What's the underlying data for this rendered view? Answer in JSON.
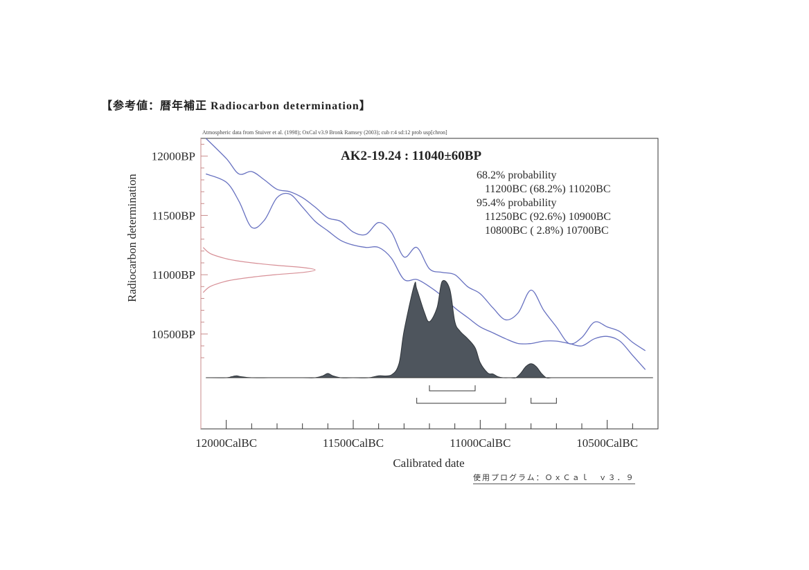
{
  "page": {
    "heading": "【参考値：暦年補正 Radiocarbon determination】",
    "program_label": "使用プログラム：ＯｘＣａｌ　ｖ３．９"
  },
  "chart_data": {
    "type": "line",
    "note": "Atmospheric data from Stuiver et al. (1998); OxCal v3.9 Bronk Ramsey (2003); cub r:4 sd:12 prob usp[chron]",
    "title": "AK2-19.24 : 11040±60BP",
    "xlabel": "Calibrated date",
    "ylabel": "Radiocarbon determination",
    "x_unit": "CalBC",
    "x_reversed": true,
    "xlim": [
      12100,
      10300
    ],
    "ylim": [
      9700,
      12150
    ],
    "x_ticks": [
      {
        "value": 12000,
        "label": "12000CalBC"
      },
      {
        "value": 11500,
        "label": "11500CalBC"
      },
      {
        "value": 11000,
        "label": "11000CalBC"
      },
      {
        "value": 10500,
        "label": "10500CalBC"
      }
    ],
    "x_minor_ticks": [
      11900,
      11800,
      11700,
      11600,
      11400,
      11300,
      11200,
      11100,
      10900,
      10800,
      10700,
      10600,
      10400
    ],
    "y_ticks": [
      {
        "value": 12000,
        "label": "12000BP"
      },
      {
        "value": 11500,
        "label": "11500BP"
      },
      {
        "value": 11000,
        "label": "11000BP"
      },
      {
        "value": 10500,
        "label": "10500BP"
      }
    ],
    "y_minor_ticks": [
      12100,
      11900,
      11800,
      11700,
      11600,
      11400,
      11300,
      11200,
      11100,
      10900,
      10800,
      10700,
      10600,
      10400,
      10300
    ],
    "measurement": {
      "mean": 11040,
      "sd": 60
    },
    "probability_text": [
      "68.2% probability",
      "11200BC (68.2%) 11020BC",
      "95.4% probability",
      "11250BC (92.6%) 10900BC",
      "10800BC ( 2.8%) 10700BC"
    ],
    "calibration_curve": {
      "x": [
        12080,
        12000,
        11950,
        11900,
        11850,
        11800,
        11750,
        11700,
        11650,
        11600,
        11550,
        11500,
        11450,
        11400,
        11350,
        11300,
        11250,
        11200,
        11150,
        11100,
        11050,
        11000,
        10950,
        10900,
        10850,
        10800,
        10750,
        10700,
        10650,
        10600,
        10550,
        10500,
        10450,
        10400,
        10350
      ],
      "upper": [
        12150,
        11980,
        11850,
        11870,
        11800,
        11720,
        11700,
        11650,
        11570,
        11480,
        11450,
        11360,
        11340,
        11440,
        11360,
        11150,
        11230,
        11050,
        11020,
        11000,
        10900,
        10840,
        10720,
        10620,
        10680,
        10870,
        10700,
        10560,
        10420,
        10470,
        10600,
        10560,
        10520,
        10430,
        10360
      ],
      "lower": [
        11850,
        11780,
        11620,
        11400,
        11460,
        11650,
        11680,
        11570,
        11450,
        11370,
        11290,
        11250,
        11230,
        11230,
        11140,
        10960,
        10960,
        10900,
        10820,
        10720,
        10640,
        10560,
        10510,
        10460,
        10420,
        10420,
        10440,
        10440,
        10420,
        10400,
        10460,
        10480,
        10440,
        10320,
        10200
      ]
    },
    "calibrated_distribution": {
      "x": [
        12080,
        12000,
        11980,
        11960,
        11940,
        11900,
        11800,
        11700,
        11650,
        11620,
        11600,
        11580,
        11550,
        11500,
        11440,
        11400,
        11350,
        11320,
        11300,
        11260,
        11250,
        11220,
        11200,
        11170,
        11150,
        11120,
        11100,
        11080,
        11050,
        11020,
        11000,
        10970,
        10950,
        10930,
        10910,
        10880,
        10860,
        10840,
        10820,
        10800,
        10780,
        10760,
        10740,
        10720,
        10700,
        10680,
        10600,
        10500,
        10400,
        10320
      ],
      "density": [
        0,
        0,
        0.01,
        0.02,
        0.01,
        0,
        0,
        0,
        0,
        0.02,
        0.045,
        0.02,
        0,
        0,
        0,
        0.02,
        0.03,
        0.15,
        0.5,
        0.99,
        0.95,
        0.7,
        0.6,
        0.75,
        1.03,
        0.95,
        0.6,
        0.5,
        0.42,
        0.32,
        0.16,
        0.05,
        0.04,
        0.01,
        0,
        0,
        0,
        0.05,
        0.12,
        0.15,
        0.12,
        0.05,
        0,
        0,
        0,
        0,
        0,
        0,
        0,
        0
      ]
    },
    "measurement_curve": {
      "y": [
        11230,
        11180,
        11140,
        11120,
        11100,
        11080,
        11060,
        11040,
        11020,
        11000,
        10980,
        10960,
        10940,
        10900,
        10850
      ],
      "density": [
        0.02,
        0.08,
        0.2,
        0.3,
        0.45,
        0.65,
        0.9,
        1.0,
        0.9,
        0.65,
        0.45,
        0.3,
        0.2,
        0.08,
        0.02
      ]
    },
    "ranges_68": [
      [
        11200,
        11020
      ]
    ],
    "ranges_95": [
      [
        11250,
        10900
      ],
      [
        10800,
        10700
      ]
    ]
  }
}
